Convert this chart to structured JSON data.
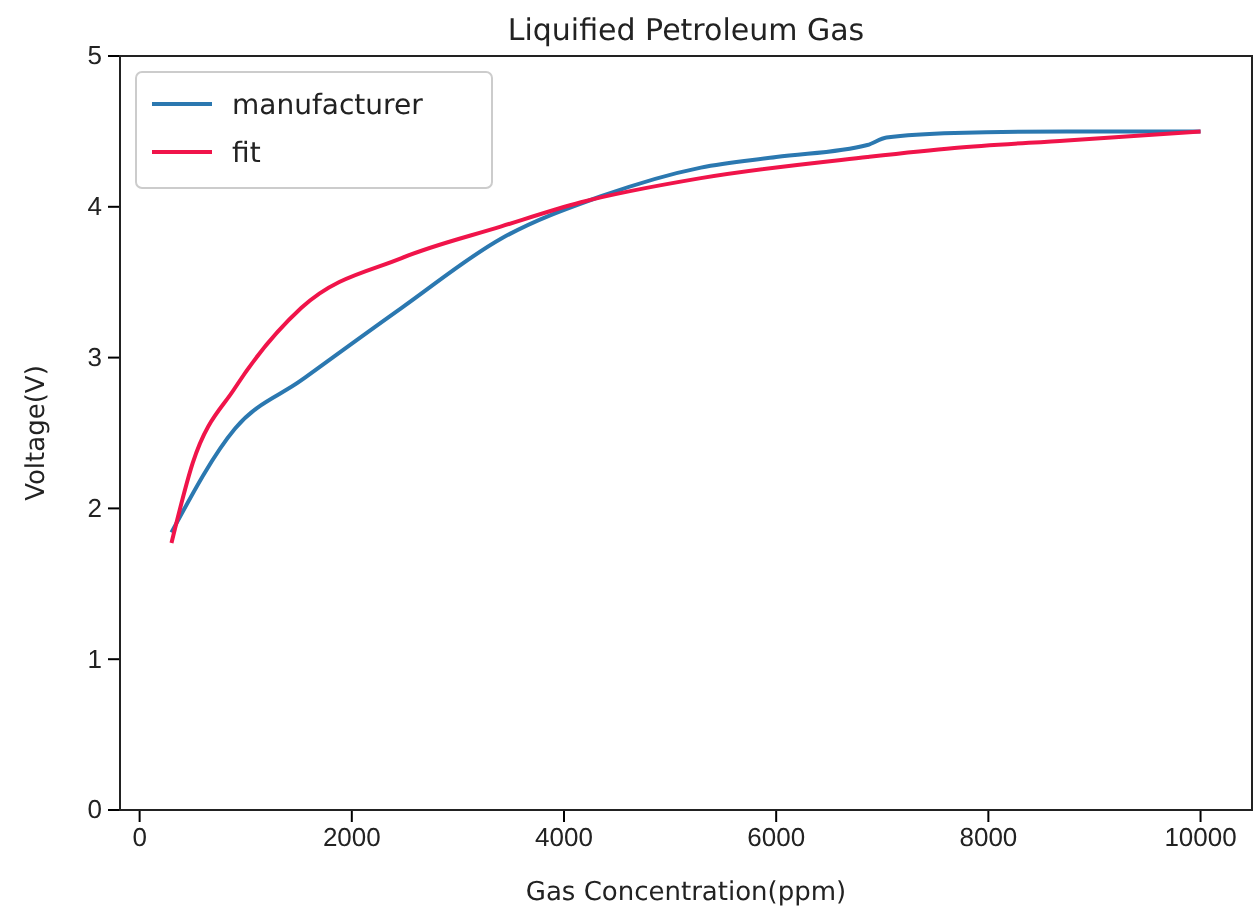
{
  "chart_data": {
    "type": "line",
    "title": "Liquified Petroleum Gas",
    "xlabel": "Gas Concentration(ppm)",
    "ylabel": "Voltage(V)",
    "xlim": [
      -185,
      10485
    ],
    "xticks": [
      0,
      2000,
      4000,
      6000,
      8000,
      10000
    ],
    "ylim": [
      0,
      5
    ],
    "yticks": [
      0,
      1,
      2,
      3,
      4,
      5
    ],
    "legend": "top left",
    "grid": false,
    "series": [
      {
        "name": "manufacturer",
        "color": "#2b78b0",
        "x": [
          300,
          900,
          1525,
          2470,
          3410,
          4350,
          5290,
          6000,
          6860,
          7040,
          7680,
          8740,
          10000
        ],
        "values": [
          1.84,
          2.53,
          2.85,
          3.33,
          3.79,
          4.07,
          4.26,
          4.33,
          4.41,
          4.46,
          4.49,
          4.5,
          4.5
        ]
      },
      {
        "name": "fit",
        "color": "#f0144a",
        "x": [
          300,
          500,
          900,
          1525,
          2470,
          3410,
          4160,
          5290,
          6860,
          7680,
          8740,
          10000
        ],
        "values": [
          1.77,
          2.3,
          2.8,
          3.33,
          3.66,
          3.87,
          4.03,
          4.19,
          4.33,
          4.39,
          4.44,
          4.5
        ]
      }
    ]
  }
}
